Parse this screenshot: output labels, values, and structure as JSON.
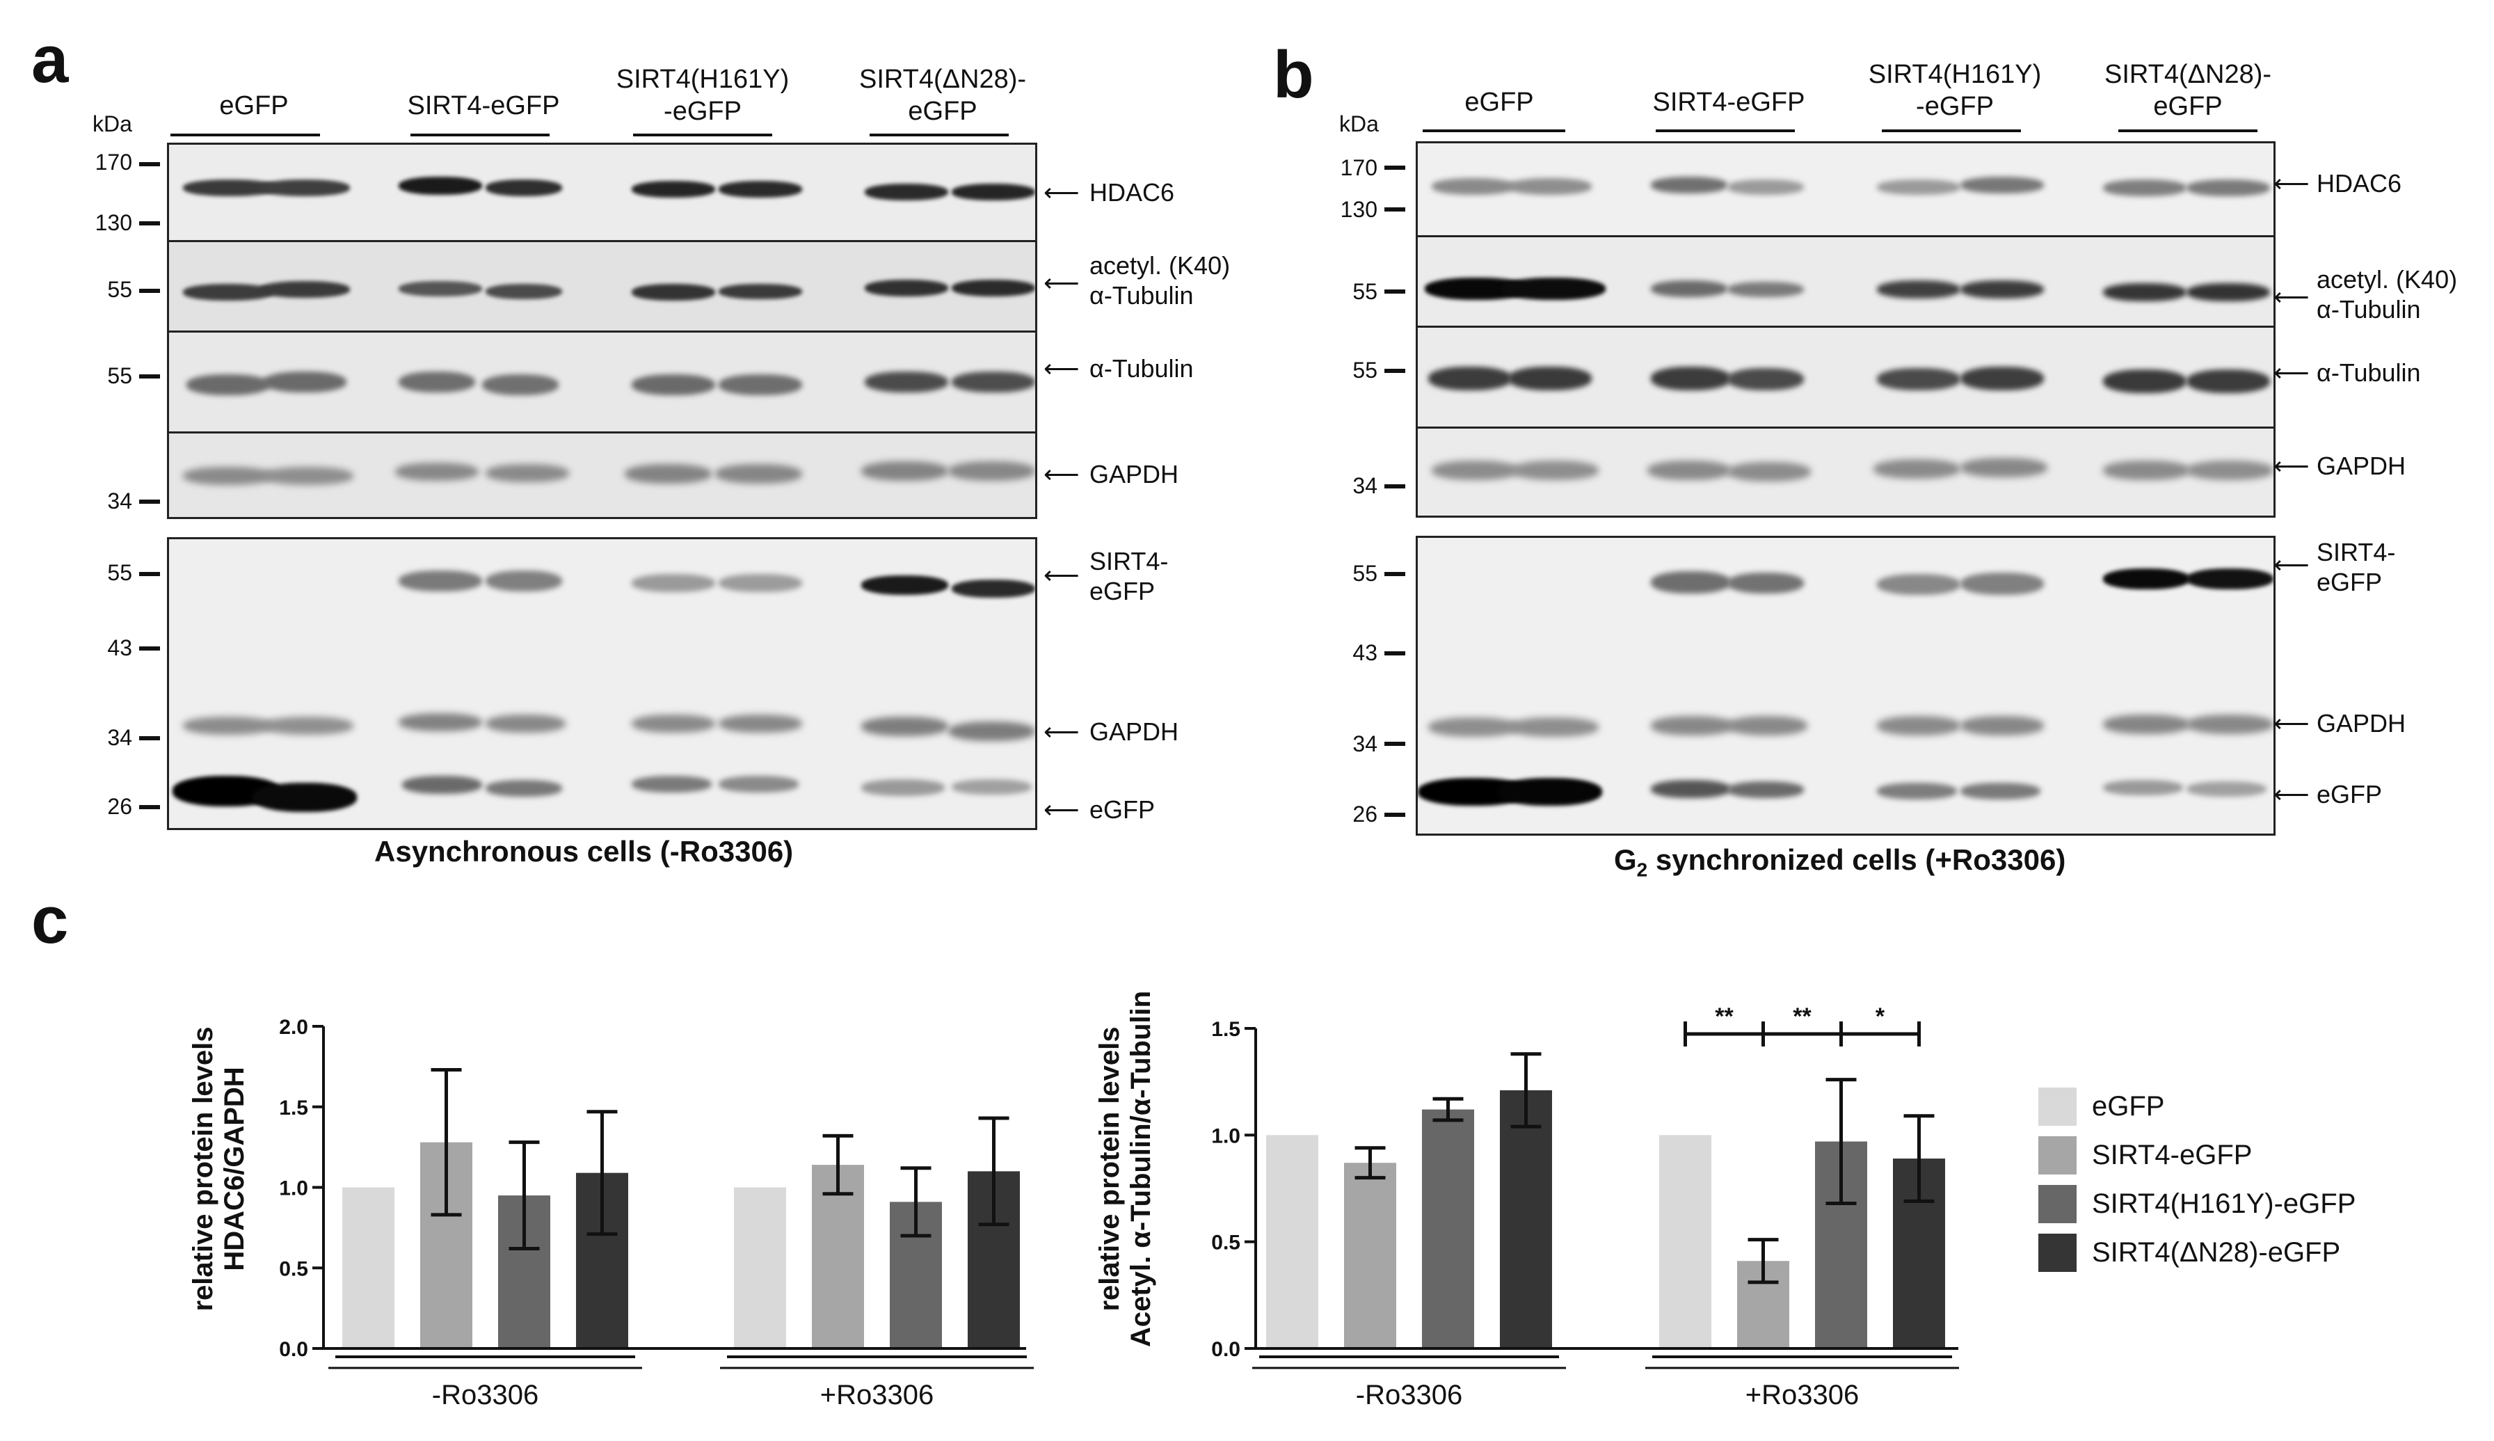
{
  "panels": {
    "a": {
      "letter": "a",
      "kda_label": "kDa",
      "lanes": [
        "eGFP",
        "SIRT4-eGFP",
        "SIRT4(H161Y)\n-eGFP",
        "SIRT4(ΔN28)-\neGFP"
      ],
      "markers": [
        "170",
        "130",
        "55",
        "55",
        "34",
        "55",
        "43",
        "34",
        "26"
      ],
      "targets": [
        "HDAC6",
        "acetyl. (K40)\nα-Tubulin",
        "α-Tubulin",
        "GAPDH",
        "SIRT4-\neGFP",
        "GAPDH",
        "eGFP"
      ],
      "caption": "Asynchronous cells (-Ro3306)"
    },
    "b": {
      "letter": "b",
      "kda_label": "kDa",
      "lanes": [
        "eGFP",
        "SIRT4-eGFP",
        "SIRT4(H161Y)\n-eGFP",
        "SIRT4(ΔN28)-\neGFP"
      ],
      "markers": [
        "170",
        "130",
        "55",
        "55",
        "34",
        "55",
        "43",
        "34",
        "26"
      ],
      "targets": [
        "HDAC6",
        "acetyl. (K40)\nα-Tubulin",
        "α-Tubulin",
        "GAPDH",
        "SIRT4-\neGFP",
        "GAPDH",
        "eGFP"
      ],
      "caption_prefix": "G",
      "caption_sub": "2",
      "caption_suffix": " synchronized cells (+Ro3306)"
    },
    "c": {
      "letter": "c"
    }
  },
  "chart_data": [
    {
      "type": "bar",
      "ylabel_line1": "relative protein levels",
      "ylabel_line2": "HDAC6/GAPDH",
      "ylim": [
        0,
        2.0
      ],
      "yticks": [
        "0.0",
        "0.5",
        "1.0",
        "1.5",
        "2.0"
      ],
      "groups": [
        "-Ro3306",
        "+Ro3306"
      ],
      "series": [
        {
          "name": "eGFP",
          "values": [
            1.0,
            1.0
          ],
          "errors": [
            0,
            0
          ]
        },
        {
          "name": "SIRT4-eGFP",
          "values": [
            1.28,
            1.14
          ],
          "errors": [
            0.45,
            0.18
          ]
        },
        {
          "name": "SIRT4(H161Y)-eGFP",
          "values": [
            0.95,
            0.91
          ],
          "errors": [
            0.33,
            0.21
          ]
        },
        {
          "name": "SIRT4(ΔN28)-eGFP",
          "values": [
            1.09,
            1.1
          ],
          "errors": [
            0.38,
            0.33
          ]
        }
      ],
      "significance": []
    },
    {
      "type": "bar",
      "ylabel_line1": "relative protein levels",
      "ylabel_line2": "Acetyl. α-Tubulin/α-Tubulin",
      "ylim": [
        0,
        1.5
      ],
      "yticks": [
        "0.0",
        "0.5",
        "1.0",
        "1.5"
      ],
      "groups": [
        "-Ro3306",
        "+Ro3306"
      ],
      "series": [
        {
          "name": "eGFP",
          "values": [
            1.0,
            1.0
          ],
          "errors": [
            0,
            0
          ]
        },
        {
          "name": "SIRT4-eGFP",
          "values": [
            0.87,
            0.41
          ],
          "errors": [
            0.07,
            0.1
          ]
        },
        {
          "name": "SIRT4(H161Y)-eGFP",
          "values": [
            1.12,
            0.97
          ],
          "errors": [
            0.05,
            0.29
          ]
        },
        {
          "name": "SIRT4(ΔN28)-eGFP",
          "values": [
            1.21,
            0.89
          ],
          "errors": [
            0.17,
            0.2
          ]
        }
      ],
      "significance": [
        {
          "group": 1,
          "from": 0,
          "to": 1,
          "label": "**"
        },
        {
          "group": 1,
          "from": 1,
          "to": 2,
          "label": "**"
        },
        {
          "group": 1,
          "from": 2,
          "to": 3,
          "label": "*"
        }
      ]
    }
  ],
  "legend": [
    {
      "label": "eGFP",
      "color": "#d9d9d9"
    },
    {
      "label": "SIRT4-eGFP",
      "color": "#a6a6a6"
    },
    {
      "label": "SIRT4(H161Y)-eGFP",
      "color": "#676767"
    },
    {
      "label": "SIRT4(ΔN28)-eGFP",
      "color": "#353535"
    }
  ],
  "colors": [
    "#d9d9d9",
    "#a6a6a6",
    "#676767",
    "#353535"
  ]
}
